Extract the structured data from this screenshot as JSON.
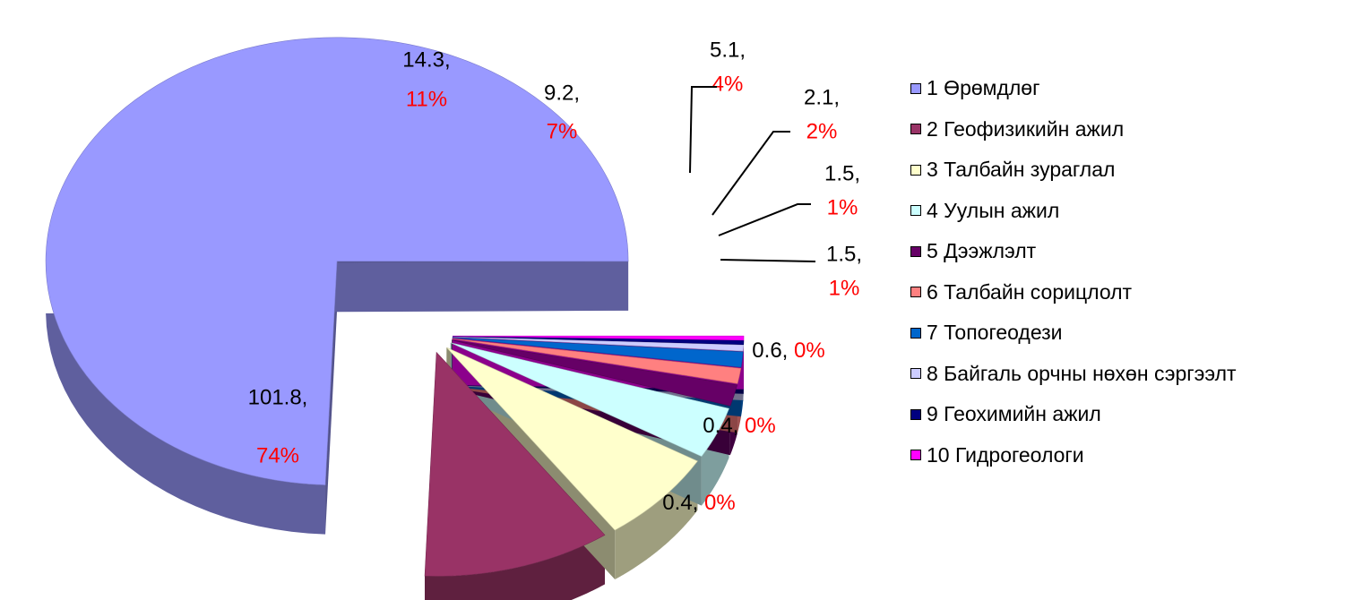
{
  "chart_data": {
    "type": "pie",
    "title": "",
    "legend_position": "right",
    "slices": [
      {
        "label": "1 Өрөмдлөг",
        "value": 101.8,
        "value_text": "101.8,",
        "percent_text": "74%",
        "color": "#9999FF"
      },
      {
        "label": "2 Геофизикийн ажил",
        "value": 14.3,
        "value_text": "14.3,",
        "percent_text": "11%",
        "color": "#993366"
      },
      {
        "label": "3 Талбайн зураглал",
        "value": 9.2,
        "value_text": "9.2,",
        "percent_text": "7%",
        "color": "#FFFFCC"
      },
      {
        "label": "4 Уулын ажил",
        "value": 5.1,
        "value_text": "5.1,",
        "percent_text": "4%",
        "color": "#CCFFFF"
      },
      {
        "label": "5 Дээжлэлт",
        "value": 2.1,
        "value_text": "2.1,",
        "percent_text": "2%",
        "color": "#660066"
      },
      {
        "label": "6 Талбайн сорицлолт",
        "value": 1.5,
        "value_text": "1.5,",
        "percent_text": "1%",
        "color": "#FF8080"
      },
      {
        "label": "7 Топогеодези",
        "value": 1.5,
        "value_text": "1.5,",
        "percent_text": "1%",
        "color": "#0066CC"
      },
      {
        "label": "8 Байгаль орчны нөхөн сэргээлт",
        "value": 0.6,
        "value_text": "0.6,",
        "percent_text": "0%",
        "color": "#CCCCFF"
      },
      {
        "label": "9 Геохимийн ажил",
        "value": 0.4,
        "value_text": "0.4,",
        "percent_text": "0%",
        "color": "#000080"
      },
      {
        "label": "10 Гидрогеологи",
        "value": 0.4,
        "value_text": "0.4,",
        "percent_text": "0%",
        "color": "#FF00FF"
      }
    ],
    "value_text_color": "#000000",
    "percent_text_color": "#FF0000"
  }
}
